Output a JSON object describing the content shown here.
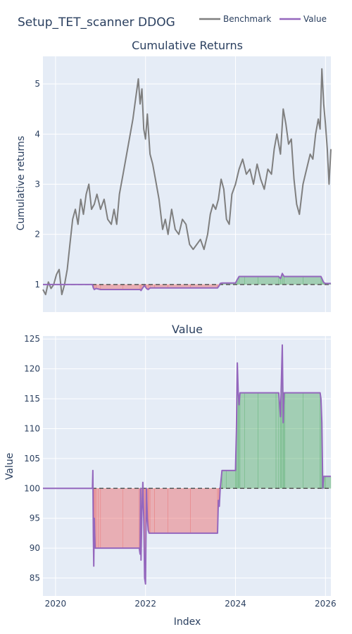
{
  "figure": {
    "title": "Setup_TET_scanner DDOG"
  },
  "legend": [
    {
      "name": "Benchmark",
      "color": "#7f7f7f"
    },
    {
      "name": "Value",
      "color": "#9467bd"
    }
  ],
  "colors": {
    "plot_bg": "#e5ecf6",
    "grid": "#ffffff",
    "benchmark": "#7f7f7f",
    "value": "#9467bd",
    "gain_fill": "rgba(80,170,100,0.45)",
    "loss_fill": "rgba(235,100,100,0.45)",
    "baseline": "#555555"
  },
  "chart_data": [
    {
      "type": "line",
      "title": "Cumulative Returns",
      "xlabel": "",
      "ylabel": "Cumulative returns",
      "xlim": [
        2019.72,
        2026.12
      ],
      "ylim": [
        0.45,
        5.55
      ],
      "x_ticks": [
        2020,
        2022,
        2024,
        2026
      ],
      "x_tick_labels": [
        "",
        "",
        "",
        ""
      ],
      "y_ticks": [
        1,
        2,
        3,
        4,
        5
      ],
      "y_tick_labels": [
        "1",
        "2",
        "3",
        "4",
        "5"
      ],
      "baseline": 1,
      "grid": true,
      "legend_position": "top",
      "series": [
        {
          "name": "Benchmark",
          "x": [
            2019.72,
            2019.78,
            2019.84,
            2019.9,
            2019.96,
            2020.02,
            2020.08,
            2020.14,
            2020.2,
            2020.26,
            2020.32,
            2020.38,
            2020.44,
            2020.5,
            2020.56,
            2020.62,
            2020.68,
            2020.74,
            2020.8,
            2020.86,
            2020.92,
            2021.0,
            2021.08,
            2021.16,
            2021.24,
            2021.3,
            2021.36,
            2021.42,
            2021.5,
            2021.58,
            2021.66,
            2021.72,
            2021.78,
            2021.84,
            2021.88,
            2021.92,
            2021.96,
            2022.0,
            2022.04,
            2022.1,
            2022.16,
            2022.22,
            2022.3,
            2022.38,
            2022.44,
            2022.5,
            2022.58,
            2022.66,
            2022.74,
            2022.82,
            2022.9,
            2022.98,
            2023.06,
            2023.14,
            2023.22,
            2023.3,
            2023.38,
            2023.44,
            2023.5,
            2023.56,
            2023.62,
            2023.68,
            2023.74,
            2023.8,
            2023.86,
            2023.92,
            2024.0,
            2024.08,
            2024.16,
            2024.24,
            2024.32,
            2024.4,
            2024.48,
            2024.56,
            2024.64,
            2024.72,
            2024.8,
            2024.86,
            2024.92,
            2025.0,
            2025.06,
            2025.12,
            2025.18,
            2025.24,
            2025.3,
            2025.36,
            2025.42,
            2025.5,
            2025.58,
            2025.66,
            2025.72,
            2025.78,
            2025.84,
            2025.88,
            2025.92,
            2025.96,
            2026.0,
            2026.04,
            2026.08,
            2026.12
          ],
          "y": [
            0.9,
            0.8,
            1.05,
            0.92,
            1.0,
            1.2,
            1.3,
            0.8,
            1.0,
            1.3,
            1.8,
            2.3,
            2.5,
            2.2,
            2.7,
            2.4,
            2.8,
            3.0,
            2.5,
            2.6,
            2.8,
            2.5,
            2.7,
            2.3,
            2.2,
            2.5,
            2.2,
            2.8,
            3.2,
            3.6,
            4.0,
            4.3,
            4.7,
            5.1,
            4.6,
            4.9,
            4.1,
            3.9,
            4.4,
            3.6,
            3.4,
            3.1,
            2.7,
            2.1,
            2.3,
            2.0,
            2.5,
            2.1,
            2.0,
            2.3,
            2.2,
            1.8,
            1.7,
            1.8,
            1.9,
            1.7,
            2.0,
            2.4,
            2.6,
            2.5,
            2.7,
            3.1,
            2.9,
            2.3,
            2.2,
            2.8,
            3.0,
            3.3,
            3.5,
            3.2,
            3.3,
            3.0,
            3.4,
            3.1,
            2.9,
            3.3,
            3.2,
            3.7,
            4.0,
            3.6,
            4.5,
            4.2,
            3.8,
            3.9,
            3.1,
            2.6,
            2.4,
            3.0,
            3.3,
            3.6,
            3.5,
            4.0,
            4.3,
            4.1,
            5.3,
            4.6,
            4.2,
            3.7,
            3.0,
            3.7
          ]
        },
        {
          "name": "Value",
          "x": [
            2019.72,
            2020.82,
            2020.84,
            2020.86,
            2020.9,
            2021.0,
            2021.5,
            2021.88,
            2021.9,
            2021.95,
            2021.98,
            2022.02,
            2022.06,
            2022.1,
            2022.2,
            2022.5,
            2023.0,
            2023.6,
            2023.64,
            2023.66,
            2023.7,
            2023.8,
            2024.0,
            2024.04,
            2024.08,
            2024.2,
            2024.5,
            2024.96,
            2025.0,
            2025.04,
            2025.08,
            2025.5,
            2025.9,
            2025.92,
            2025.96,
            2026.0,
            2026.12
          ],
          "y": [
            1.0,
            1.0,
            0.93,
            0.9,
            0.92,
            0.9,
            0.9,
            0.9,
            0.88,
            0.95,
            0.98,
            0.92,
            0.9,
            0.93,
            0.93,
            0.93,
            0.93,
            0.93,
            0.98,
            1.02,
            1.03,
            1.03,
            1.03,
            1.1,
            1.16,
            1.16,
            1.16,
            1.16,
            1.12,
            1.22,
            1.16,
            1.16,
            1.16,
            1.12,
            1.04,
            1.02,
            1.02
          ]
        }
      ]
    },
    {
      "type": "area",
      "title": "Value",
      "xlabel": "Index",
      "ylabel": "Value",
      "xlim": [
        2019.72,
        2026.12
      ],
      "ylim": [
        82,
        125.5
      ],
      "x_ticks": [
        2020,
        2022,
        2024,
        2026
      ],
      "x_tick_labels": [
        "2020",
        "2022",
        "2024",
        "2026"
      ],
      "y_ticks": [
        85,
        90,
        95,
        100,
        105,
        110,
        115,
        120,
        125
      ],
      "y_tick_labels": [
        "85",
        "90",
        "95",
        "100",
        "105",
        "110",
        "115",
        "120",
        "125"
      ],
      "baseline": 100,
      "grid": true,
      "series": [
        {
          "name": "Value",
          "x": [
            2019.72,
            2020.82,
            2020.83,
            2020.84,
            2020.85,
            2020.86,
            2020.88,
            2020.9,
            2020.95,
            2021.0,
            2021.5,
            2021.86,
            2021.88,
            2021.89,
            2021.9,
            2021.92,
            2021.94,
            2021.96,
            2021.98,
            2022.0,
            2022.02,
            2022.04,
            2022.06,
            2022.08,
            2022.1,
            2022.2,
            2022.5,
            2023.0,
            2023.6,
            2023.62,
            2023.64,
            2023.66,
            2023.7,
            2023.8,
            2024.0,
            2024.02,
            2024.04,
            2024.06,
            2024.08,
            2024.1,
            2024.2,
            2024.5,
            2024.9,
            2024.96,
            2025.0,
            2025.02,
            2025.04,
            2025.06,
            2025.08,
            2025.1,
            2025.5,
            2025.88,
            2025.9,
            2025.92,
            2025.94,
            2025.96,
            2025.98,
            2026.0,
            2026.12
          ],
          "y": [
            100,
            100,
            103,
            92,
            87,
            95,
            90,
            90,
            90,
            90,
            90,
            90,
            89,
            100,
            88,
            96,
            101,
            95,
            85,
            84,
            100,
            95,
            93,
            92.5,
            92.5,
            92.5,
            92.5,
            92.5,
            92.5,
            98,
            97,
            100,
            103,
            103,
            103,
            110,
            121,
            116,
            114,
            116,
            116,
            116,
            116,
            116,
            112,
            118,
            124,
            111,
            116,
            116,
            116,
            116,
            115,
            111,
            100,
            102,
            102,
            102,
            102
          ]
        }
      ]
    }
  ]
}
